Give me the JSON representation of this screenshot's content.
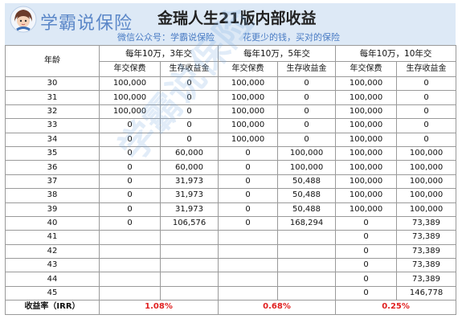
{
  "header": {
    "brand": "学霸说保险",
    "title": "金瑞人生21版内部收益",
    "subtitle": "微信公众号：学霸说保险          花更少的钱，买对的保险"
  },
  "table": {
    "age_header": "年龄",
    "groups": [
      "每年10万，3年交",
      "每年10万，5年交",
      "每年10万，10年交"
    ],
    "sub_headers": [
      "年交保费",
      "生存收益金",
      "年交保费",
      "生存收益金",
      "年交保费",
      "生存收益金"
    ],
    "rows": [
      [
        "30",
        "100,000",
        "0",
        "100,000",
        "0",
        "100,000",
        "0"
      ],
      [
        "31",
        "100,000",
        "0",
        "100,000",
        "0",
        "100,000",
        "0"
      ],
      [
        "32",
        "100,000",
        "0",
        "100,000",
        "0",
        "100,000",
        "0"
      ],
      [
        "33",
        "0",
        "0",
        "100,000",
        "0",
        "100,000",
        "0"
      ],
      [
        "34",
        "0",
        "0",
        "100,000",
        "0",
        "100,000",
        "0"
      ],
      [
        "35",
        "0",
        "60,000",
        "0",
        "100,000",
        "100,000",
        "100,000"
      ],
      [
        "36",
        "0",
        "60,000",
        "0",
        "100,000",
        "100,000",
        "100,000"
      ],
      [
        "37",
        "0",
        "31,973",
        "0",
        "50,488",
        "100,000",
        "100,000"
      ],
      [
        "38",
        "0",
        "31,973",
        "0",
        "50,488",
        "100,000",
        "100,000"
      ],
      [
        "39",
        "0",
        "31,973",
        "0",
        "50,488",
        "100,000",
        "100,000"
      ],
      [
        "40",
        "0",
        "106,576",
        "0",
        "168,294",
        "0",
        "73,389"
      ],
      [
        "41",
        "",
        "",
        "",
        "",
        "0",
        "73,389"
      ],
      [
        "42",
        "",
        "",
        "",
        "",
        "0",
        "73,389"
      ],
      [
        "43",
        "",
        "",
        "",
        "",
        "0",
        "73,389"
      ],
      [
        "44",
        "",
        "",
        "",
        "",
        "0",
        "73,389"
      ],
      [
        "45",
        "",
        "",
        "",
        "",
        "0",
        "146,778"
      ]
    ],
    "irr_label": "收益率（IRR）",
    "irr_values": [
      "1.08%",
      "0.68%",
      "0.25%"
    ]
  },
  "watermark": "学霸说保险",
  "colors": {
    "header_bg": "#dde9f6",
    "brand": "#5b87c8",
    "irr": "#e02020"
  }
}
